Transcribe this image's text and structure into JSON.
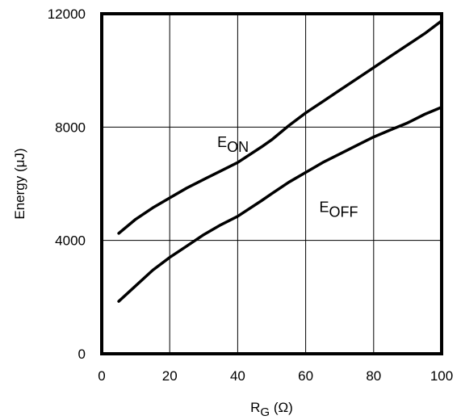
{
  "chart_data": {
    "type": "line",
    "title": "",
    "xlabel": {
      "main": "R",
      "sub": "G",
      "unit": " (Ω)"
    },
    "ylabel": "Energy (μJ)",
    "xlim": [
      0,
      100
    ],
    "ylim": [
      0,
      12000
    ],
    "x_ticks": [
      0,
      20,
      40,
      60,
      80,
      100
    ],
    "y_ticks": [
      0,
      4000,
      8000,
      12000
    ],
    "grid": true,
    "legend": "none",
    "colors": {
      "line": "#000000",
      "grid": "#000000",
      "frame": "#000000",
      "background": "#ffffff"
    },
    "series": [
      {
        "name": "E_ON",
        "label_main": "E",
        "label_sub": "ON",
        "label_at": {
          "x": 34,
          "y": 7300
        },
        "x": [
          5,
          10,
          15,
          20,
          25,
          30,
          35,
          40,
          47,
          50,
          55,
          60,
          65,
          70,
          75,
          80,
          85,
          90,
          95,
          100
        ],
        "values": [
          4250,
          4750,
          5150,
          5500,
          5850,
          6150,
          6450,
          6750,
          7300,
          7550,
          8050,
          8500,
          8900,
          9300,
          9700,
          10100,
          10500,
          10900,
          11300,
          11750
        ]
      },
      {
        "name": "E_OFF",
        "label_main": "E",
        "label_sub": "OFF",
        "label_at": {
          "x": 64,
          "y": 5000
        },
        "x": [
          5,
          10,
          15,
          20,
          25,
          30,
          35,
          40,
          47,
          50,
          55,
          60,
          65,
          70,
          75,
          80,
          85,
          90,
          95,
          100
        ],
        "values": [
          1850,
          2400,
          2950,
          3400,
          3800,
          4200,
          4550,
          4850,
          5400,
          5650,
          6050,
          6400,
          6750,
          7050,
          7350,
          7650,
          7900,
          8150,
          8450,
          8700
        ]
      }
    ]
  }
}
